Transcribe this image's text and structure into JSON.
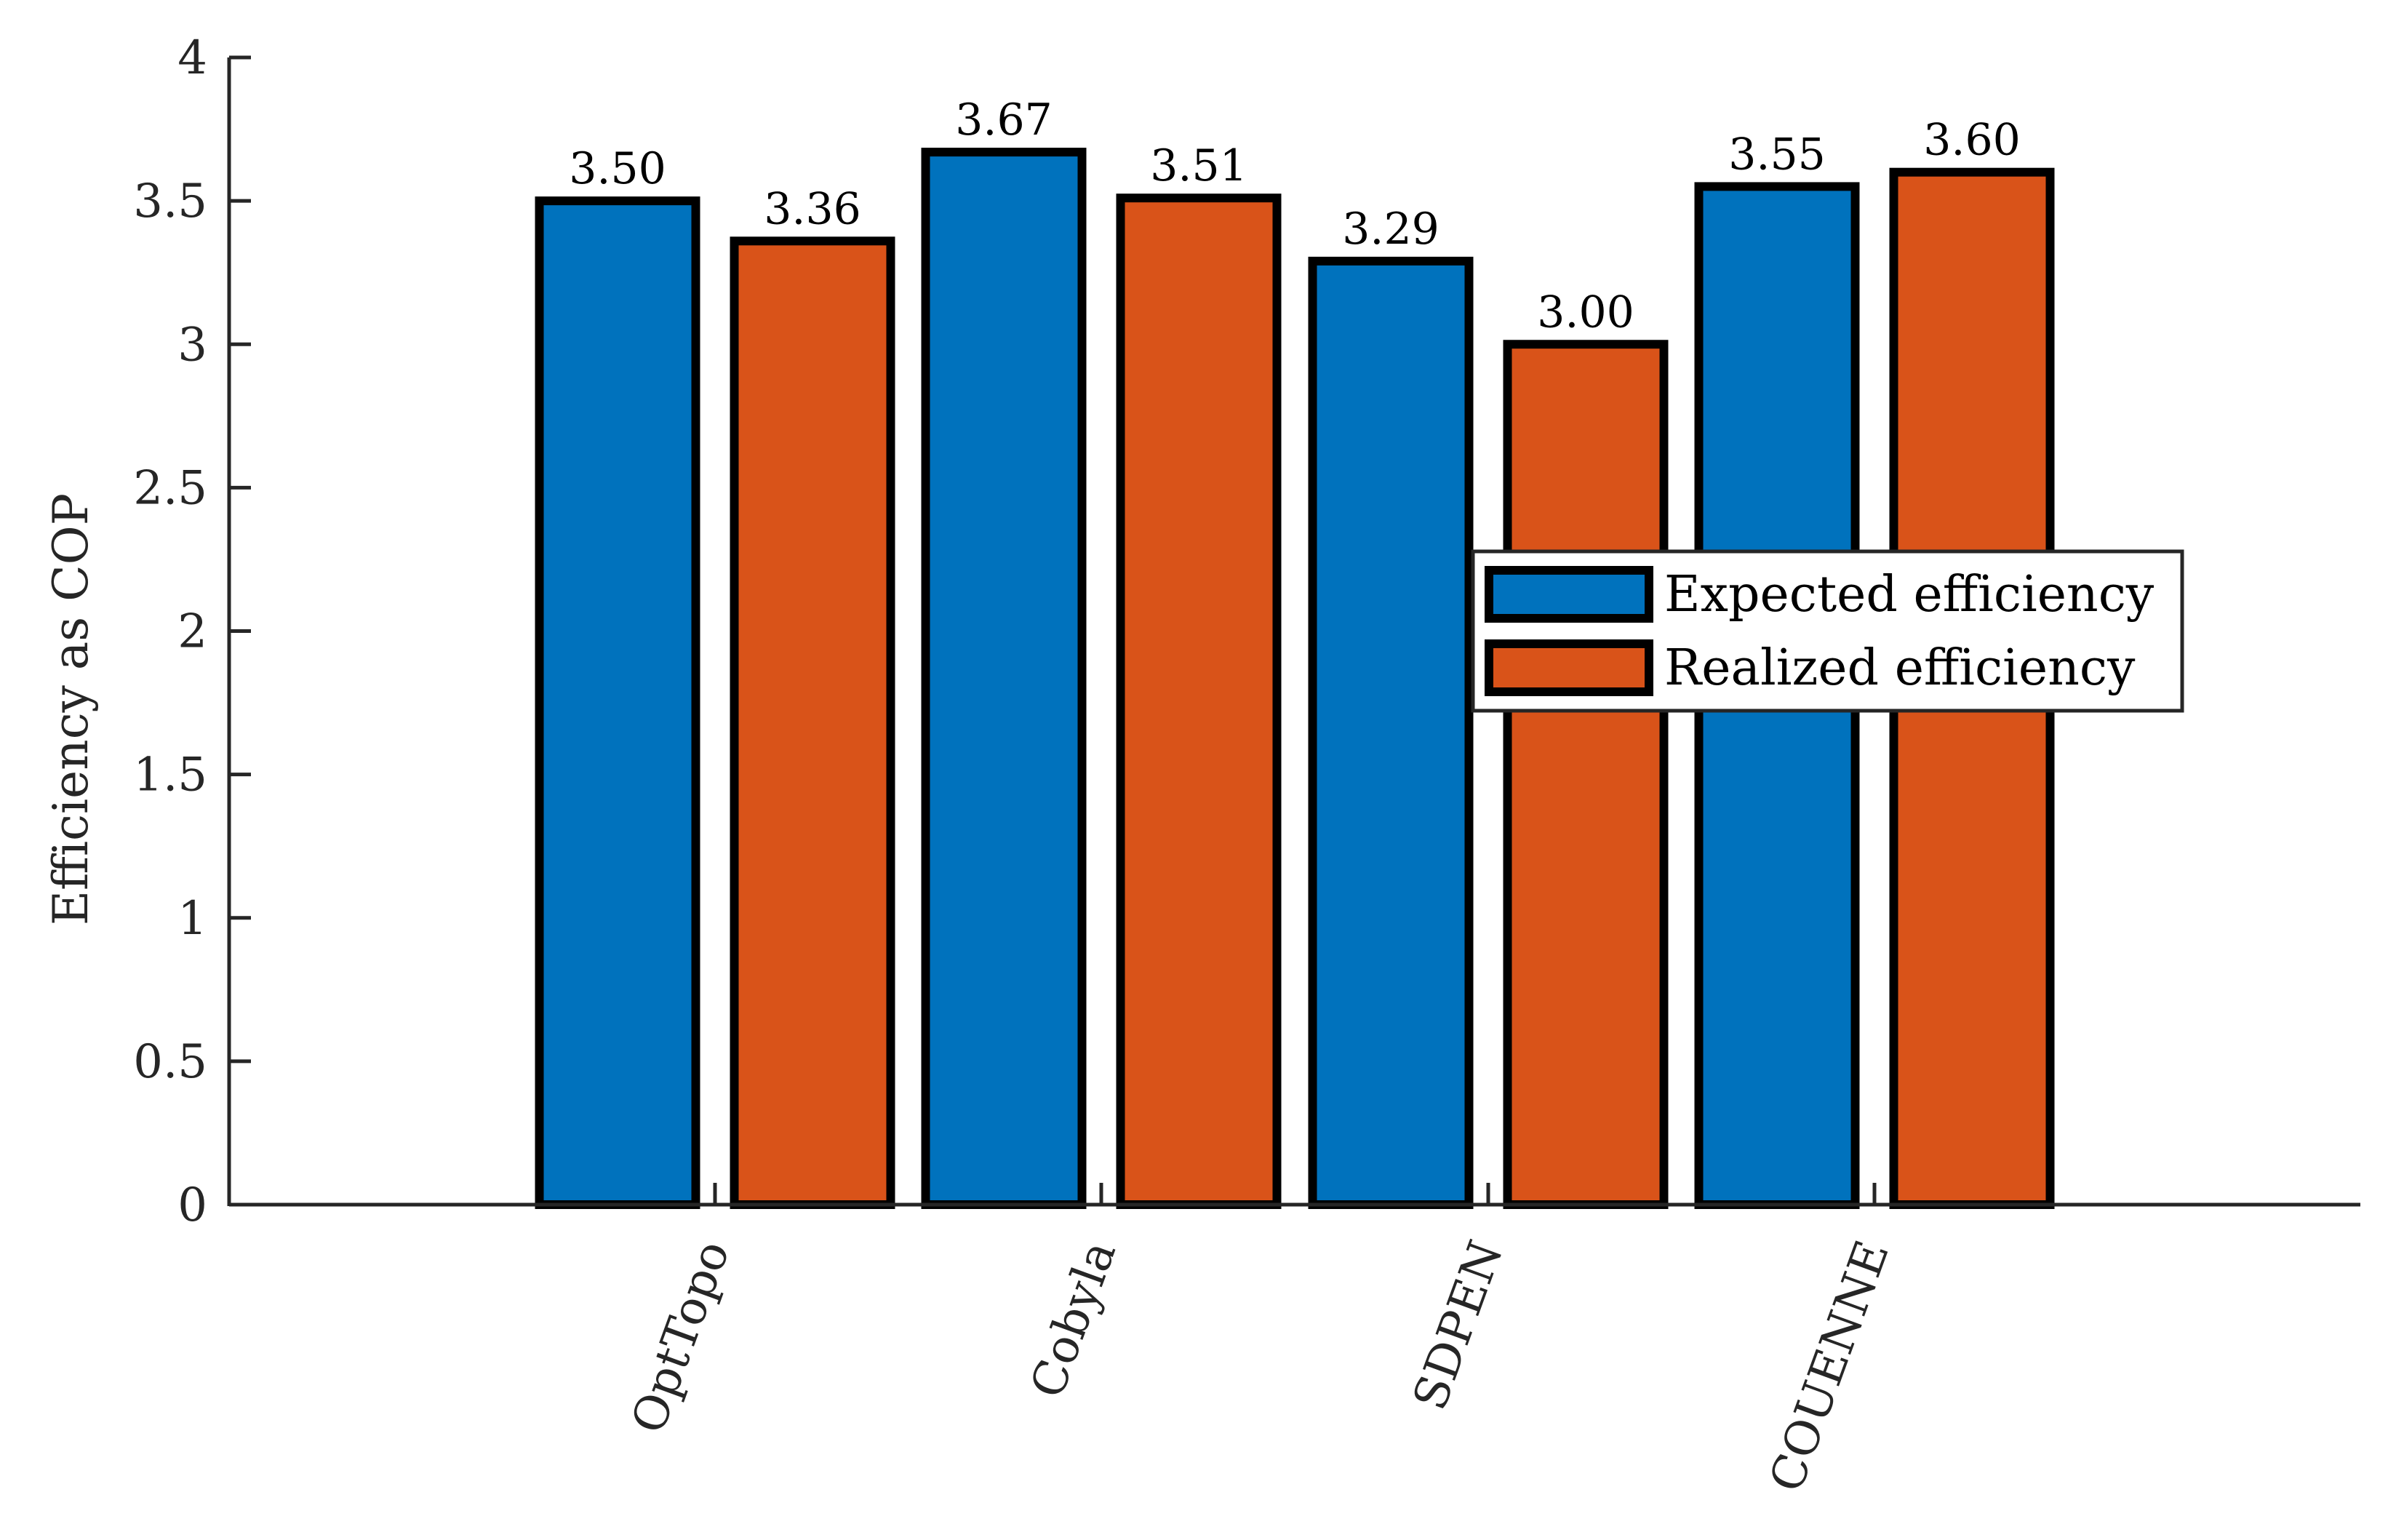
{
  "chart_data": {
    "type": "bar",
    "title": "",
    "xlabel": "",
    "ylabel": "Efficiency as COP",
    "ylim": [
      0,
      4
    ],
    "yticks": [
      0,
      0.5,
      1,
      1.5,
      2,
      2.5,
      3,
      3.5,
      4
    ],
    "ytick_labels": [
      "0",
      "0.5",
      "1",
      "1.5",
      "2",
      "2.5",
      "3",
      "3.5",
      "4"
    ],
    "categories": [
      "OptTopo",
      "Cobyla",
      "SDPEN",
      "COUENNE"
    ],
    "series": [
      {
        "name": "Expected efficiency",
        "color": "#0072BD",
        "values": [
          3.5,
          3.67,
          3.29,
          3.55
        ],
        "labels": [
          "3.50",
          "3.67",
          "3.29",
          "3.55"
        ]
      },
      {
        "name": "Realized efficiency",
        "color": "#D95319",
        "values": [
          3.36,
          3.51,
          3.0,
          3.6
        ],
        "labels": [
          "3.36",
          "3.51",
          "3.00",
          "3.60"
        ]
      }
    ],
    "legend_position": "center-right",
    "grid": false
  }
}
